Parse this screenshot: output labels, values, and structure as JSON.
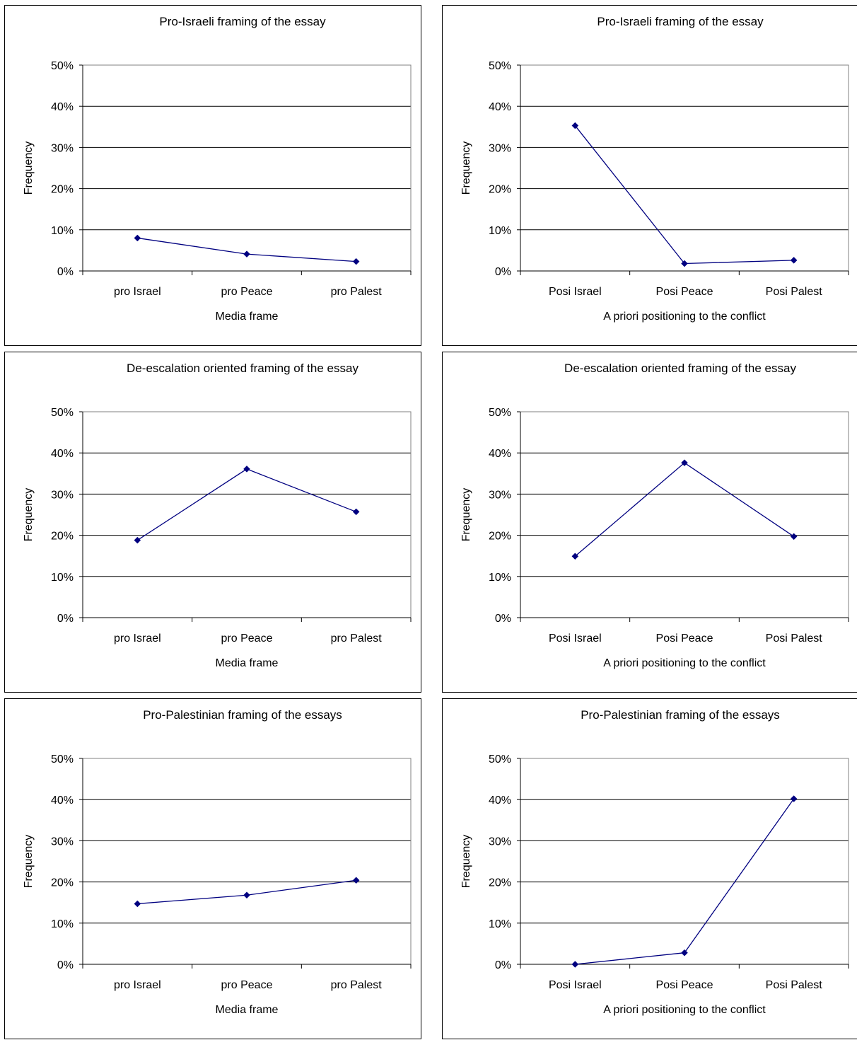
{
  "chart_data": [
    {
      "type": "line",
      "title": "Pro-Israeli framing of the essay",
      "xlabel": "Media frame",
      "ylabel": "Frequency",
      "categories": [
        "pro Israel",
        "pro Peace",
        "pro Palest"
      ],
      "values": [
        0.08,
        0.041,
        0.023
      ],
      "ylim": [
        0,
        0.5
      ],
      "yticks": [
        "0%",
        "10%",
        "20%",
        "30%",
        "40%",
        "50%"
      ],
      "grid": true,
      "legend": "none",
      "line_color": "#000080"
    },
    {
      "type": "line",
      "title": "Pro-Israeli framing of the essay",
      "xlabel": "A priori positioning to the conflict",
      "ylabel": "Frequency",
      "categories": [
        "Posi Israel",
        "Posi Peace",
        "Posi Palest"
      ],
      "values": [
        0.353,
        0.018,
        0.026
      ],
      "ylim": [
        0,
        0.5
      ],
      "yticks": [
        "0%",
        "10%",
        "20%",
        "30%",
        "40%",
        "50%"
      ],
      "grid": true,
      "legend": "none",
      "line_color": "#000080"
    },
    {
      "type": "line",
      "title": "De-escalation oriented framing of the essay",
      "xlabel": "Media frame",
      "ylabel": "Frequency",
      "categories": [
        "pro Israel",
        "pro Peace",
        "pro Palest"
      ],
      "values": [
        0.188,
        0.361,
        0.257
      ],
      "ylim": [
        0,
        0.5
      ],
      "yticks": [
        "0%",
        "10%",
        "20%",
        "30%",
        "40%",
        "50%"
      ],
      "grid": true,
      "legend": "none",
      "line_color": "#000080"
    },
    {
      "type": "line",
      "title": "De-escalation oriented framing of the essay",
      "xlabel": "A priori positioning to the conflict",
      "ylabel": "Frequency",
      "categories": [
        "Posi Israel",
        "Posi Peace",
        "Posi Palest"
      ],
      "values": [
        0.149,
        0.376,
        0.197
      ],
      "ylim": [
        0,
        0.5
      ],
      "yticks": [
        "0%",
        "10%",
        "20%",
        "30%",
        "40%",
        "50%"
      ],
      "grid": true,
      "legend": "none",
      "line_color": "#000080"
    },
    {
      "type": "line",
      "title": "Pro-Palestinian framing of the essays",
      "xlabel": "Media frame",
      "ylabel": "Frequency",
      "categories": [
        "pro Israel",
        "pro Peace",
        "pro Palest"
      ],
      "values": [
        0.147,
        0.168,
        0.204
      ],
      "ylim": [
        0,
        0.5
      ],
      "yticks": [
        "0%",
        "10%",
        "20%",
        "30%",
        "40%",
        "50%"
      ],
      "grid": true,
      "legend": "none",
      "line_color": "#000080"
    },
    {
      "type": "line",
      "title": "Pro-Palestinian framing of the essays",
      "xlabel": "A priori positioning to the conflict",
      "ylabel": "Frequency",
      "categories": [
        "Posi Israel",
        "Posi Peace",
        "Posi Palest"
      ],
      "values": [
        0.0,
        0.028,
        0.402
      ],
      "ylim": [
        0,
        0.5
      ],
      "yticks": [
        "0%",
        "10%",
        "20%",
        "30%",
        "40%",
        "50%"
      ],
      "grid": true,
      "legend": "none",
      "line_color": "#000080"
    }
  ]
}
